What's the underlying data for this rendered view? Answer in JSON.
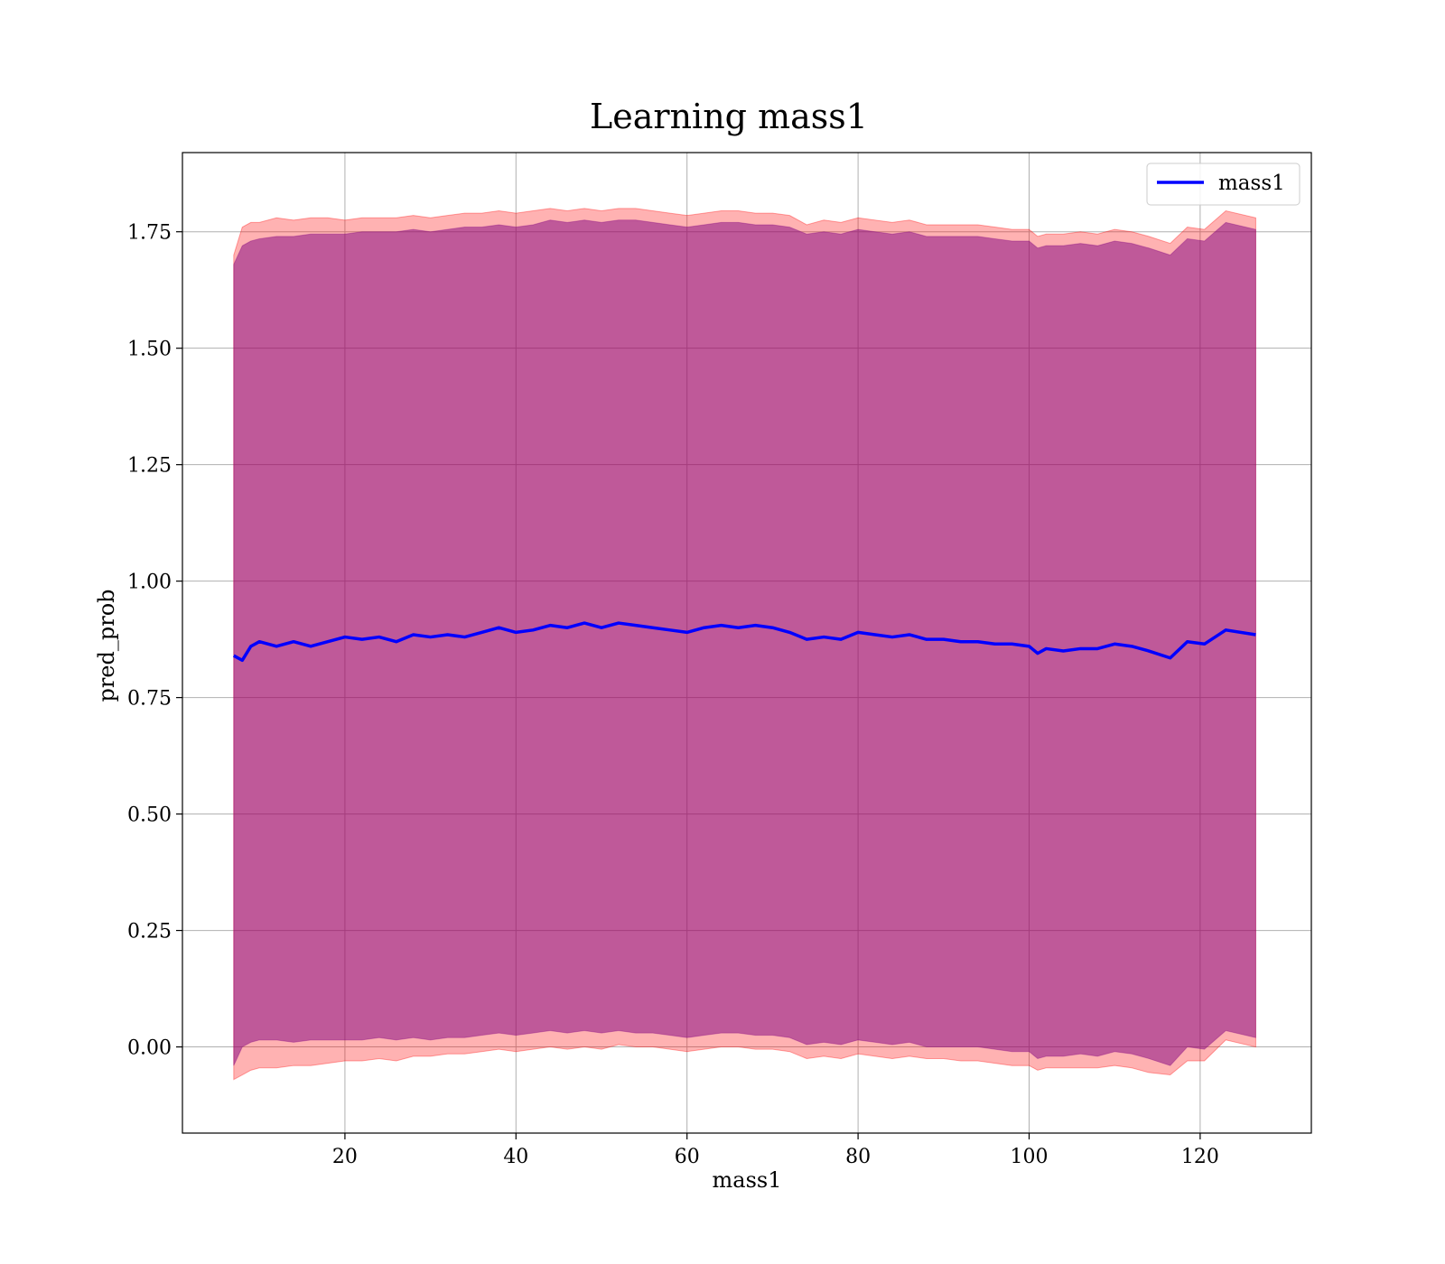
{
  "chart_data": {
    "type": "line",
    "title": "Learning mass1",
    "xlabel": "mass1",
    "ylabel": "pred_prob",
    "xlim": [
      1,
      133
    ],
    "ylim": [
      -0.185,
      1.92
    ],
    "xticks": [
      20,
      40,
      60,
      80,
      100,
      120
    ],
    "yticks": [
      0.0,
      0.25,
      0.5,
      0.75,
      1.0,
      1.25,
      1.5,
      1.75
    ],
    "ytick_labels": [
      "0.00",
      "0.25",
      "0.50",
      "0.75",
      "1.00",
      "1.25",
      "1.50",
      "1.75"
    ],
    "grid": true,
    "legend_position": "top-right",
    "colors": {
      "mean_line": "#0000ff",
      "outer_band": "#ff0000",
      "inner_band": "#800080",
      "grid": "#b0b0b0"
    },
    "series": [
      {
        "name": "mass1",
        "x": [
          7,
          8,
          9,
          10,
          12,
          14,
          16,
          18,
          20,
          22,
          24,
          26,
          28,
          30,
          32,
          34,
          36,
          38,
          40,
          42,
          44,
          46,
          48,
          50,
          52,
          54,
          56,
          58,
          60,
          62,
          64,
          66,
          68,
          70,
          72,
          74,
          76,
          78,
          80,
          82,
          84,
          86,
          88,
          90,
          92,
          94,
          96,
          98,
          100,
          101,
          102,
          104,
          106,
          108,
          110,
          112,
          114,
          116.5,
          118.5,
          120.5,
          123,
          126.5
        ],
        "y": [
          0.84,
          0.83,
          0.86,
          0.87,
          0.86,
          0.87,
          0.86,
          0.87,
          0.88,
          0.875,
          0.88,
          0.87,
          0.885,
          0.88,
          0.885,
          0.88,
          0.89,
          0.9,
          0.89,
          0.895,
          0.905,
          0.9,
          0.91,
          0.9,
          0.91,
          0.905,
          0.9,
          0.895,
          0.89,
          0.9,
          0.905,
          0.9,
          0.905,
          0.9,
          0.89,
          0.875,
          0.88,
          0.875,
          0.89,
          0.885,
          0.88,
          0.885,
          0.875,
          0.875,
          0.87,
          0.87,
          0.865,
          0.865,
          0.86,
          0.845,
          0.855,
          0.85,
          0.855,
          0.855,
          0.865,
          0.86,
          0.85,
          0.835,
          0.87,
          0.865,
          0.895,
          0.885
        ],
        "band_outer_upper": [
          1.7,
          1.76,
          1.77,
          1.77,
          1.78,
          1.775,
          1.78,
          1.78,
          1.775,
          1.78,
          1.78,
          1.78,
          1.785,
          1.78,
          1.785,
          1.79,
          1.79,
          1.795,
          1.79,
          1.795,
          1.8,
          1.795,
          1.8,
          1.795,
          1.8,
          1.8,
          1.795,
          1.79,
          1.785,
          1.79,
          1.795,
          1.795,
          1.79,
          1.79,
          1.785,
          1.765,
          1.775,
          1.77,
          1.78,
          1.775,
          1.77,
          1.775,
          1.765,
          1.765,
          1.765,
          1.765,
          1.76,
          1.755,
          1.755,
          1.74,
          1.745,
          1.745,
          1.75,
          1.745,
          1.755,
          1.75,
          1.74,
          1.725,
          1.76,
          1.755,
          1.795,
          1.78
        ],
        "band_inner_upper": [
          1.68,
          1.72,
          1.73,
          1.735,
          1.74,
          1.74,
          1.745,
          1.745,
          1.745,
          1.75,
          1.75,
          1.75,
          1.755,
          1.75,
          1.755,
          1.76,
          1.76,
          1.765,
          1.76,
          1.765,
          1.775,
          1.77,
          1.775,
          1.77,
          1.775,
          1.775,
          1.77,
          1.765,
          1.76,
          1.765,
          1.77,
          1.77,
          1.765,
          1.765,
          1.76,
          1.745,
          1.75,
          1.745,
          1.755,
          1.75,
          1.745,
          1.75,
          1.74,
          1.74,
          1.74,
          1.74,
          1.735,
          1.73,
          1.73,
          1.715,
          1.72,
          1.72,
          1.725,
          1.72,
          1.73,
          1.725,
          1.715,
          1.7,
          1.735,
          1.73,
          1.77,
          1.755
        ],
        "band_inner_lower": [
          -0.04,
          0.0,
          0.01,
          0.015,
          0.015,
          0.01,
          0.015,
          0.015,
          0.015,
          0.015,
          0.02,
          0.015,
          0.02,
          0.015,
          0.02,
          0.02,
          0.025,
          0.03,
          0.025,
          0.03,
          0.035,
          0.03,
          0.035,
          0.03,
          0.035,
          0.03,
          0.03,
          0.025,
          0.02,
          0.025,
          0.03,
          0.03,
          0.025,
          0.025,
          0.02,
          0.005,
          0.01,
          0.005,
          0.015,
          0.01,
          0.005,
          0.01,
          0.0,
          0.0,
          0.0,
          0.0,
          -0.005,
          -0.01,
          -0.01,
          -0.025,
          -0.02,
          -0.02,
          -0.015,
          -0.02,
          -0.01,
          -0.015,
          -0.025,
          -0.04,
          0.0,
          -0.005,
          0.035,
          0.02
        ],
        "band_outer_lower": [
          -0.07,
          -0.06,
          -0.05,
          -0.045,
          -0.045,
          -0.04,
          -0.04,
          -0.035,
          -0.03,
          -0.03,
          -0.025,
          -0.03,
          -0.02,
          -0.02,
          -0.015,
          -0.015,
          -0.01,
          -0.005,
          -0.01,
          -0.005,
          0.0,
          -0.005,
          0.0,
          -0.005,
          0.005,
          0.0,
          0.0,
          -0.005,
          -0.01,
          -0.005,
          0.0,
          0.0,
          -0.005,
          -0.005,
          -0.01,
          -0.025,
          -0.02,
          -0.025,
          -0.015,
          -0.02,
          -0.025,
          -0.02,
          -0.025,
          -0.025,
          -0.03,
          -0.03,
          -0.035,
          -0.04,
          -0.04,
          -0.05,
          -0.045,
          -0.045,
          -0.045,
          -0.045,
          -0.04,
          -0.045,
          -0.055,
          -0.06,
          -0.03,
          -0.03,
          0.015,
          0.0
        ]
      }
    ]
  }
}
